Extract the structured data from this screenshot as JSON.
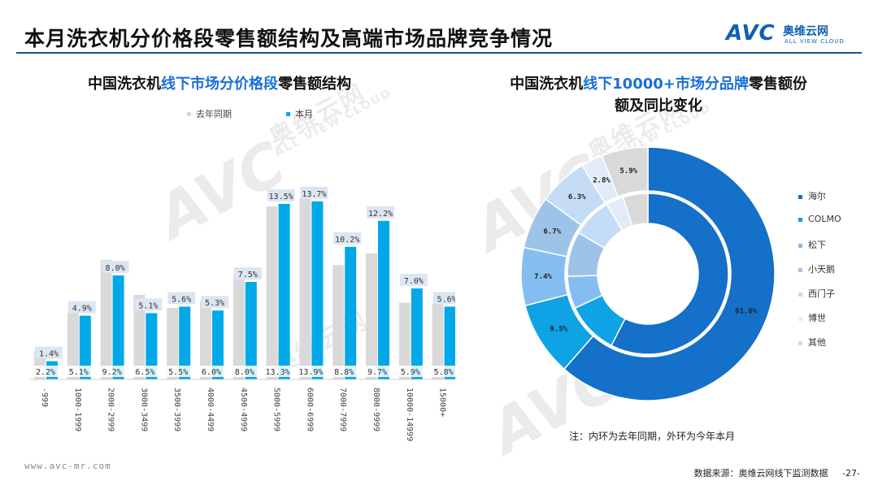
{
  "header": {
    "title": "本月洗衣机分价格段零售额结构及高端市场品牌竞争情况",
    "logo_mark": "AVC",
    "logo_cn": "奥维云网",
    "logo_en": "ALL VIEW CLOUD"
  },
  "left_chart": {
    "title_pre": "中国洗衣机",
    "title_hl": "线下市场分价格段",
    "title_post": "零售额结构"
  },
  "right_chart": {
    "title_line1_pre": "中国洗衣机",
    "title_line1_hl": "线下10000+市场分品牌",
    "title_line1_post": "零售额份",
    "title_line2": "额及同比变化",
    "note": "注：内环为去年同期，外环为今年本月"
  },
  "footer": {
    "url": "www.avc-mr.com",
    "source": "数据来源：奥维云网线下监测数据",
    "page": "-27-"
  },
  "watermark": {
    "mark": "AVC",
    "cn": "奥维云网",
    "en": "ALL VIEW CLOUD"
  },
  "colors": {
    "prev": "#d9d9d9",
    "curr": "#00a8e8",
    "title_blue": "#1a6fd8",
    "rule": "#1b4f9a"
  },
  "chart_data": [
    {
      "type": "bar",
      "categories": [
        "-999",
        "1000-1999",
        "2000-2999",
        "3000-3499",
        "3500-3999",
        "4000-4499",
        "4500-4999",
        "5000-5999",
        "6000-6999",
        "7000-7999",
        "8000-9999",
        "10000-14999",
        "15000+"
      ],
      "series": [
        {
          "name": "去年同期",
          "values": [
            2.2,
            5.1,
            9.2,
            6.5,
            5.5,
            6.0,
            8.0,
            13.3,
            13.9,
            8.8,
            9.7,
            5.9,
            5.8
          ],
          "labels": [
            "2.2%",
            "5.1%",
            "9.2%",
            "6.5%",
            "5.5%",
            "6.0%",
            "8.0%",
            "13.3%",
            "13.9%",
            "8.8%",
            "9.7%",
            "5.9%",
            "5.8%"
          ],
          "color": "#d9d9d9"
        },
        {
          "name": "本月",
          "values": [
            1.4,
            4.9,
            8.0,
            5.1,
            5.6,
            5.3,
            7.5,
            13.5,
            13.7,
            10.2,
            12.2,
            7.0,
            5.6
          ],
          "labels": [
            "1.4%",
            "4.9%",
            "8.0%",
            "5.1%",
            "5.6%",
            "5.3%",
            "7.5%",
            "13.5%",
            "13.7%",
            "10.2%",
            "12.2%",
            "7.0%",
            "5.6%"
          ],
          "color": "#00a8e8"
        }
      ],
      "ylim": [
        0,
        15
      ],
      "legend": "top"
    },
    {
      "type": "pie",
      "categories": [
        "海尔",
        "COLMO",
        "松下",
        "小天鹅",
        "西门子",
        "博世",
        "其他"
      ],
      "colors": [
        "#1470c8",
        "#0fa2e4",
        "#84bef0",
        "#9ec3e8",
        "#c4dcf5",
        "#e2ecf8",
        "#d9d9d9"
      ],
      "outer_values": [
        61.6,
        9.5,
        7.4,
        6.7,
        6.3,
        2.8,
        5.9
      ],
      "outer_labels": [
        "61.6%",
        "9.5%",
        "7.4%",
        "6.7%",
        "6.3%",
        "2.8%",
        "5.9%"
      ],
      "inner_values": [
        57.5,
        10.5,
        6.5,
        9.0,
        8.0,
        3.5,
        5.0
      ],
      "legend": "right"
    }
  ]
}
